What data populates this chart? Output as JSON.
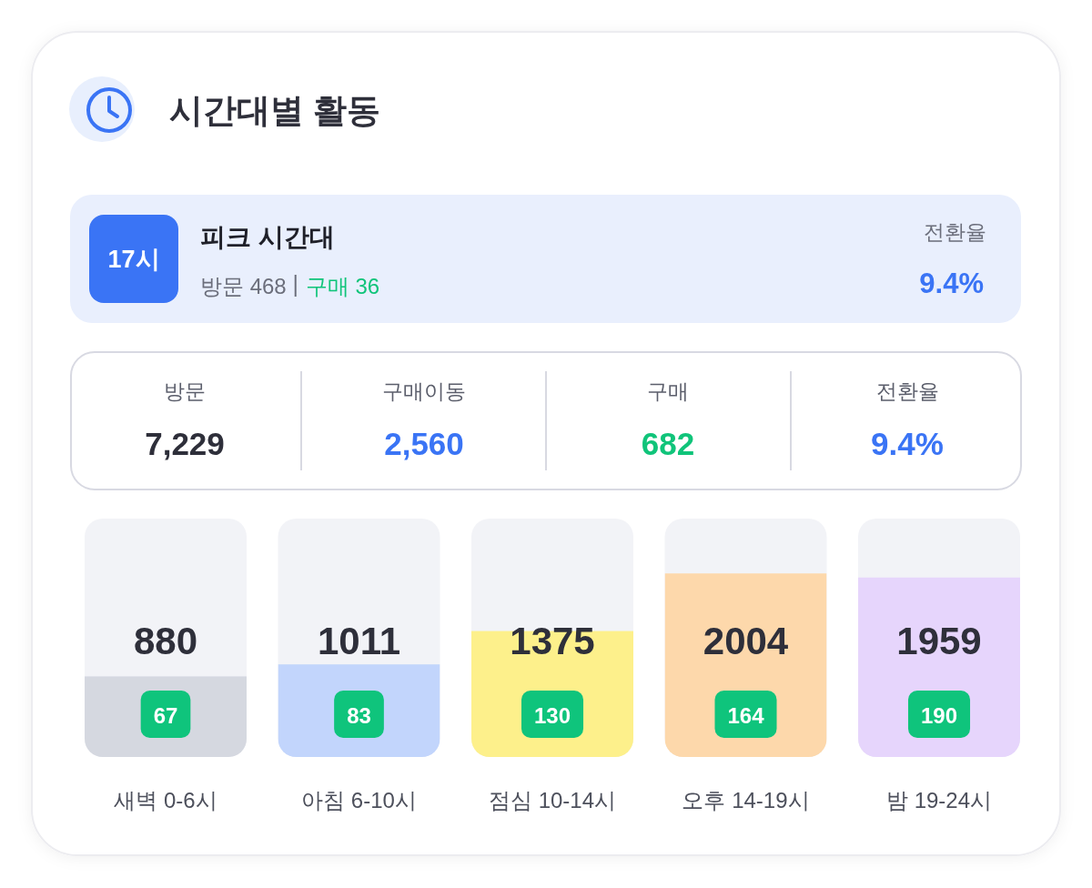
{
  "chart_data": [
    {
      "type": "other",
      "title": "시간대별 활동",
      "annotations": [
        "17시",
        "피크 시간대",
        "방문 468",
        "구매 36",
        "전환율",
        "9.4%",
        "방문",
        "7,229",
        "구매이동",
        "2,560",
        "구매",
        "682",
        "전환율",
        "9.4%"
      ]
    },
    {
      "type": "bar",
      "categories": [
        "새벽 0-6시",
        "아침 6-10시",
        "점심 10-14시",
        "오후 14-19시",
        "밤 19-24시"
      ],
      "values": [
        880,
        1011,
        1375,
        2004,
        1959
      ],
      "colors": [
        "#d5d8e0",
        "#c2d5fc",
        "#fdf08b",
        "#fdd8ab",
        "#e6d5fc"
      ],
      "data_labels": true,
      "annotations": [
        "67",
        "83",
        "130",
        "164",
        "190"
      ]
    }
  ]
}
